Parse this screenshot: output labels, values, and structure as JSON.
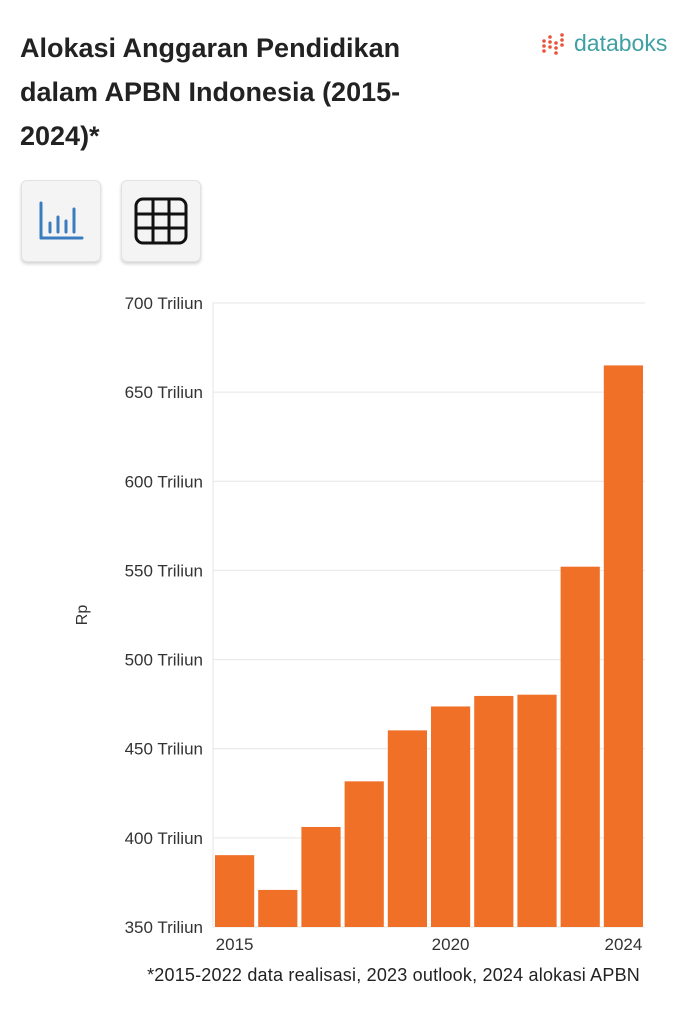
{
  "header": {
    "title": "Alokasi Anggaran Pendidikan dalam APBN Indonesia (2015-2024)*",
    "brand": "databoks",
    "brand_color": "#3fa0a4",
    "brand_dots_color": "#e8533c"
  },
  "view_buttons": [
    {
      "icon": "bar-chart-icon",
      "active": true
    },
    {
      "icon": "table-grid-icon",
      "active": false
    }
  ],
  "chart_data": {
    "type": "bar",
    "categories": [
      "2015",
      "2016",
      "2017",
      "2018",
      "2019",
      "2020",
      "2021",
      "2022",
      "2023",
      "2024"
    ],
    "values": [
      390.3,
      370.8,
      406.1,
      431.7,
      460.3,
      473.7,
      479.6,
      480.3,
      552.1,
      665.0
    ],
    "bar_color": "#f07028",
    "ylabel": "Rp",
    "ylim": [
      350,
      700
    ],
    "yticks": [
      {
        "value": 350,
        "label": "350 Triliun"
      },
      {
        "value": 400,
        "label": "400 Triliun"
      },
      {
        "value": 450,
        "label": "450 Triliun"
      },
      {
        "value": 500,
        "label": "500 Triliun"
      },
      {
        "value": 550,
        "label": "550 Triliun"
      },
      {
        "value": 600,
        "label": "600 Triliun"
      },
      {
        "value": 650,
        "label": "650 Triliun"
      },
      {
        "value": 700,
        "label": "700 Triliun"
      }
    ],
    "xtick_labels": [
      {
        "category": "2015",
        "label": "2015"
      },
      {
        "category": "2020",
        "label": "2020"
      },
      {
        "category": "2024",
        "label": "2024"
      }
    ],
    "grid": true
  },
  "footnote": "*2015-2022 data realisasi, 2023 outlook, 2024 alokasi APBN"
}
